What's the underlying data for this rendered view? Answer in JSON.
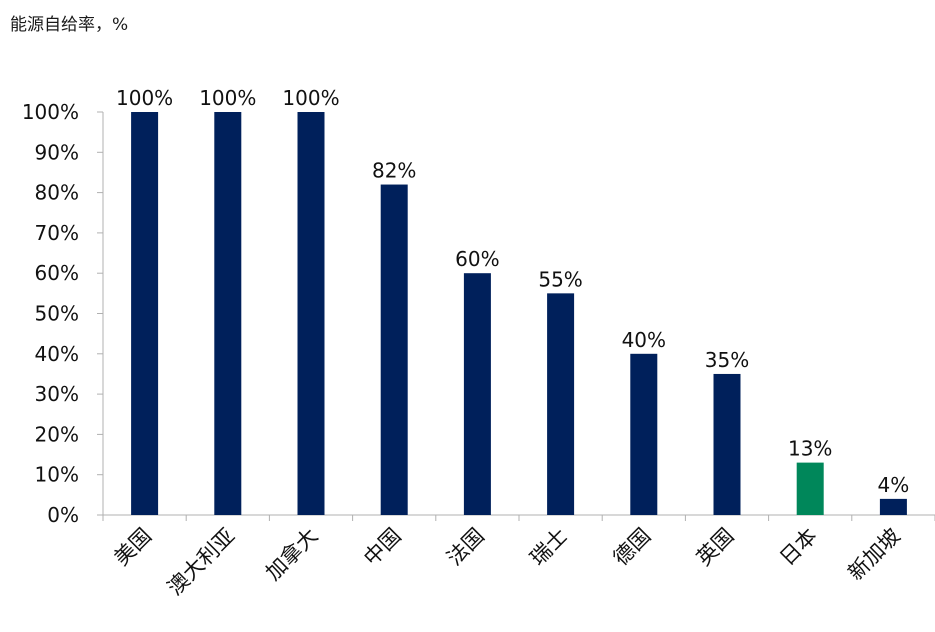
{
  "chart_data": {
    "type": "bar",
    "title": "能源自给率，%",
    "categories": [
      "美国",
      "澳大利亚",
      "加拿大",
      "中国",
      "法国",
      "瑞士",
      "德国",
      "英国",
      "日本",
      "新加坡"
    ],
    "values": [
      100,
      100,
      100,
      82,
      60,
      55,
      40,
      35,
      13,
      4
    ],
    "data_labels": [
      "100%",
      "100%",
      "100%",
      "82%",
      "60%",
      "55%",
      "40%",
      "35%",
      "13%",
      "4%"
    ],
    "ylim": [
      0,
      100
    ],
    "y_ticks": [
      "0%",
      "10%",
      "20%",
      "30%",
      "40%",
      "50%",
      "60%",
      "70%",
      "80%",
      "90%",
      "100%"
    ],
    "grid": false,
    "colors": {
      "default": "#00205B",
      "highlight": "#00875A",
      "highlight_category": "日本",
      "axis": "#b0b0b0"
    }
  }
}
